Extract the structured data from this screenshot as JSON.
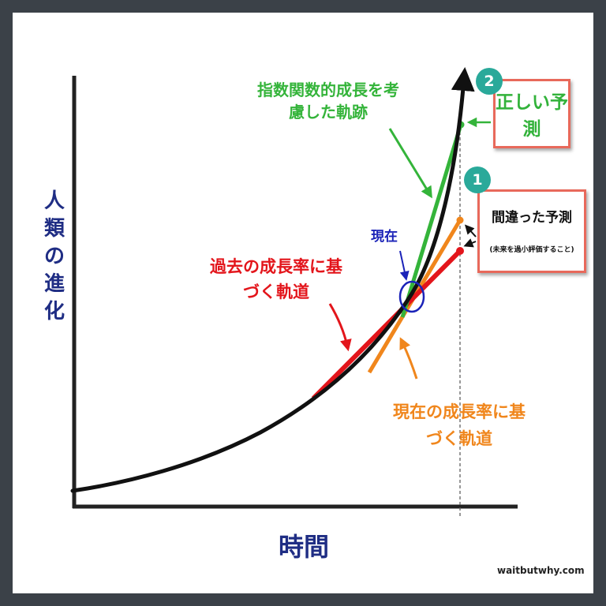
{
  "axes": {
    "y_label": "人類の進化",
    "x_label": "時間"
  },
  "annotations": {
    "green_trajectory": "指数関数的成長を考慮した軌跡",
    "red_trajectory": "過去の成長率に基づく軌道",
    "orange_trajectory": "現在の成長率に基づく軌道",
    "now": "現在"
  },
  "callouts": {
    "correct": {
      "badge": "2",
      "label": "正しい予測"
    },
    "wrong": {
      "badge": "1",
      "title": "間違った予測",
      "note": "(未来を過小評価すること)"
    }
  },
  "credit": "waitbutwhy.com",
  "colors": {
    "axis": "#222222",
    "curve": "#111111",
    "green": "#34b43a",
    "red": "#e3151b",
    "orange": "#f0861c",
    "navy": "#1f2d84",
    "blue_circle": "#1b23b8",
    "badge": "#2aa99a",
    "box_border": "#e8695b"
  }
}
